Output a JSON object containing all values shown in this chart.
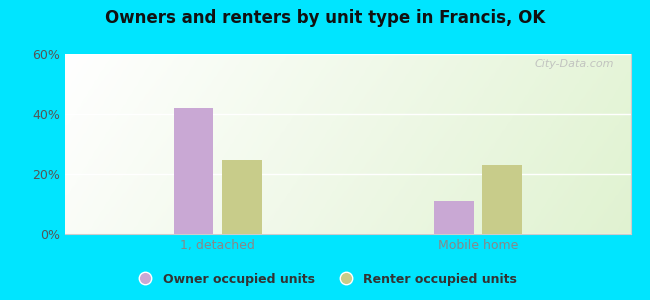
{
  "title": "Owners and renters by unit type in Francis, OK",
  "groups": [
    "1, detached",
    "Mobile home"
  ],
  "series": [
    "Owner occupied units",
    "Renter occupied units"
  ],
  "values": [
    [
      41.9,
      24.8
    ],
    [
      11.0,
      22.9
    ]
  ],
  "owner_color": "#c9a8d4",
  "renter_color": "#c8cc8a",
  "ylim": [
    0,
    0.6
  ],
  "yticks": [
    0.0,
    0.2,
    0.4,
    0.6
  ],
  "ytick_labels": [
    "0%",
    "20%",
    "40%",
    "60%"
  ],
  "background_outer": "#00e5ff",
  "bar_width": 0.07,
  "watermark": "City-Data.com"
}
